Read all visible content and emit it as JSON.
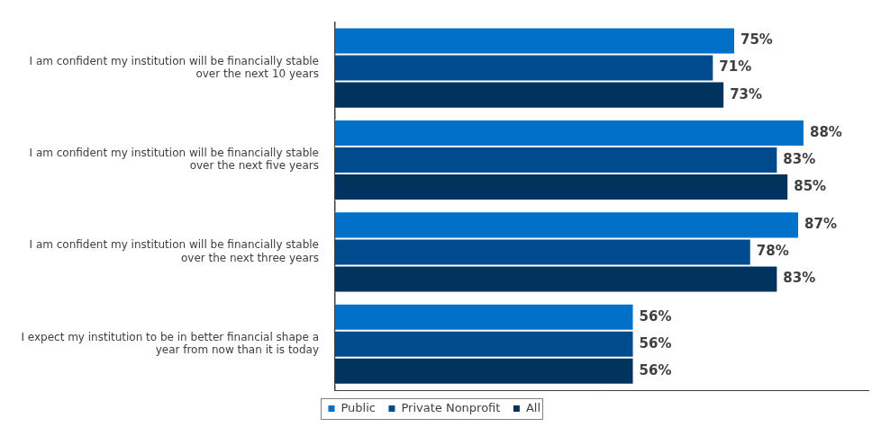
{
  "chart_data": {
    "type": "bar",
    "orientation": "horizontal",
    "categories": [
      "I am confident my institution will be financially stable over the next 10 years",
      "I am confident my institution will be financially stable over the next five years",
      "I am confident my institution will be financially stable over the next three years",
      "I expect my institution to be in better financial shape a year from now than it is today"
    ],
    "series": [
      {
        "name": "Public",
        "color": "#0070C8",
        "values": [
          75,
          88,
          87,
          56
        ],
        "value_labels": [
          "75%",
          "88%",
          "87%",
          "56%"
        ]
      },
      {
        "name": "Private Nonprofit",
        "color": "#004B8D",
        "values": [
          71,
          83,
          78,
          56
        ],
        "value_labels": [
          "71%",
          "83%",
          "78%",
          "56%"
        ]
      },
      {
        "name": "All",
        "color": "#00345F",
        "values": [
          73,
          85,
          83,
          56
        ],
        "value_labels": [
          "73%",
          "85%",
          "83%",
          "56%"
        ]
      }
    ],
    "xlim": [
      0,
      100
    ],
    "grid": false,
    "legend": "bottom",
    "data_labels": true,
    "tick_labels": "y"
  }
}
